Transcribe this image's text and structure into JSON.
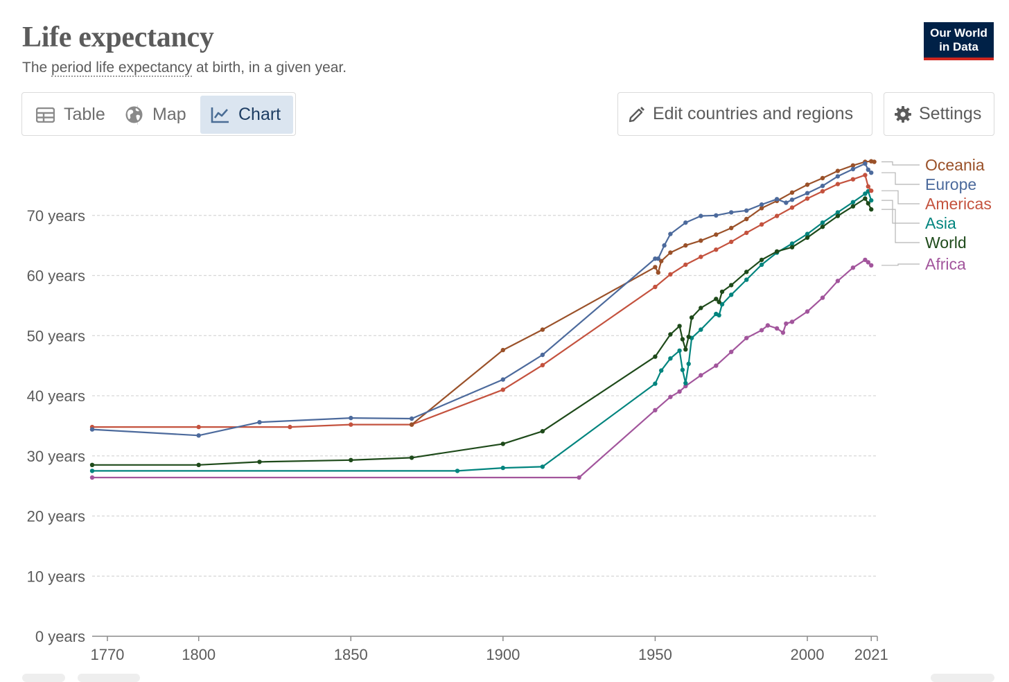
{
  "header": {
    "title": "Life expectancy",
    "subtitle_prefix": "The ",
    "subtitle_link": "period life expectancy",
    "subtitle_suffix": " at birth, in a given year.",
    "logo_line1": "Our World",
    "logo_line2": "in Data"
  },
  "tabs": [
    {
      "label": "Table",
      "icon": "table-icon"
    },
    {
      "label": "Map",
      "icon": "globe-icon"
    },
    {
      "label": "Chart",
      "icon": "line-chart-icon",
      "active": true
    }
  ],
  "actions": {
    "edit_label": "Edit countries and regions",
    "edit_icon": "pencil-icon",
    "settings_label": "Settings",
    "settings_icon": "gear-icon"
  },
  "chart_data": {
    "type": "line",
    "title": "Life expectancy",
    "subtitle": "The period life expectancy at birth, in a given year.",
    "xlim": [
      1765,
      2023
    ],
    "ylim": [
      0,
      80
    ],
    "xticks": [
      1770,
      1800,
      1850,
      1900,
      1950,
      2000,
      2021
    ],
    "yticks": [
      {
        "value": 0,
        "label": "0 years"
      },
      {
        "value": 10,
        "label": "10 years"
      },
      {
        "value": 20,
        "label": "20 years"
      },
      {
        "value": 30,
        "label": "30 years"
      },
      {
        "value": 40,
        "label": "40 years"
      },
      {
        "value": 50,
        "label": "50 years"
      },
      {
        "value": 60,
        "label": "60 years"
      },
      {
        "value": 70,
        "label": "70 years"
      }
    ],
    "grid": true,
    "legend": "right",
    "series": [
      {
        "name": "Oceania",
        "color": "#9a5129",
        "points": [
          [
            1870,
            35.2
          ],
          [
            1900,
            47.6
          ],
          [
            1913,
            51.0
          ],
          [
            1950,
            61.4
          ],
          [
            1951,
            60.5
          ],
          [
            1952,
            62.4
          ],
          [
            1955,
            63.8
          ],
          [
            1960,
            65.0
          ],
          [
            1965,
            65.8
          ],
          [
            1970,
            66.8
          ],
          [
            1975,
            67.9
          ],
          [
            1980,
            69.4
          ],
          [
            1985,
            71.2
          ],
          [
            1990,
            72.4
          ],
          [
            1995,
            73.8
          ],
          [
            2000,
            75.1
          ],
          [
            2005,
            76.2
          ],
          [
            2010,
            77.4
          ],
          [
            2015,
            78.3
          ],
          [
            2019,
            78.9
          ],
          [
            2021,
            79.0
          ],
          [
            2022,
            78.9
          ]
        ]
      },
      {
        "name": "Europe",
        "color": "#4c6a9c",
        "points": [
          [
            1765,
            34.4
          ],
          [
            1800,
            33.4
          ],
          [
            1820,
            35.6
          ],
          [
            1850,
            36.3
          ],
          [
            1870,
            36.2
          ],
          [
            1900,
            42.7
          ],
          [
            1913,
            46.8
          ],
          [
            1950,
            62.8
          ],
          [
            1951,
            62.8
          ],
          [
            1953,
            65.0
          ],
          [
            1955,
            66.9
          ],
          [
            1960,
            68.8
          ],
          [
            1965,
            69.9
          ],
          [
            1970,
            70.0
          ],
          [
            1975,
            70.5
          ],
          [
            1980,
            70.8
          ],
          [
            1985,
            71.8
          ],
          [
            1990,
            72.7
          ],
          [
            1993,
            72.1
          ],
          [
            1995,
            72.6
          ],
          [
            2000,
            73.7
          ],
          [
            2005,
            74.9
          ],
          [
            2010,
            76.5
          ],
          [
            2015,
            77.7
          ],
          [
            2019,
            78.6
          ],
          [
            2020,
            77.6
          ],
          [
            2021,
            77.1
          ]
        ]
      },
      {
        "name": "Americas",
        "color": "#c4523e",
        "points": [
          [
            1765,
            34.8
          ],
          [
            1800,
            34.8
          ],
          [
            1830,
            34.8
          ],
          [
            1850,
            35.2
          ],
          [
            1870,
            35.2
          ],
          [
            1900,
            41.0
          ],
          [
            1913,
            45.1
          ],
          [
            1950,
            58.1
          ],
          [
            1955,
            60.2
          ],
          [
            1960,
            61.8
          ],
          [
            1965,
            63.1
          ],
          [
            1970,
            64.3
          ],
          [
            1975,
            65.6
          ],
          [
            1980,
            67.1
          ],
          [
            1985,
            68.5
          ],
          [
            1990,
            69.9
          ],
          [
            1995,
            71.3
          ],
          [
            2000,
            72.8
          ],
          [
            2005,
            74.0
          ],
          [
            2010,
            75.2
          ],
          [
            2015,
            76.0
          ],
          [
            2019,
            76.7
          ],
          [
            2020,
            74.8
          ],
          [
            2021,
            74.1
          ]
        ]
      },
      {
        "name": "Asia",
        "color": "#00847e",
        "points": [
          [
            1765,
            27.5
          ],
          [
            1885,
            27.5
          ],
          [
            1900,
            28.0
          ],
          [
            1913,
            28.2
          ],
          [
            1950,
            42.0
          ],
          [
            1952,
            44.2
          ],
          [
            1955,
            46.2
          ],
          [
            1958,
            47.5
          ],
          [
            1959,
            44.3
          ],
          [
            1960,
            42.1
          ],
          [
            1961,
            45.3
          ],
          [
            1962,
            49.6
          ],
          [
            1965,
            51.0
          ],
          [
            1970,
            53.6
          ],
          [
            1971,
            53.4
          ],
          [
            1972,
            55.2
          ],
          [
            1975,
            56.8
          ],
          [
            1980,
            59.3
          ],
          [
            1985,
            61.8
          ],
          [
            1990,
            63.8
          ],
          [
            1995,
            65.3
          ],
          [
            2000,
            66.9
          ],
          [
            2005,
            68.8
          ],
          [
            2010,
            70.5
          ],
          [
            2015,
            72.2
          ],
          [
            2019,
            73.6
          ],
          [
            2020,
            74.0
          ],
          [
            2021,
            72.5
          ]
        ]
      },
      {
        "name": "World",
        "color": "#1e4a1a",
        "points": [
          [
            1765,
            28.5
          ],
          [
            1800,
            28.5
          ],
          [
            1820,
            29.0
          ],
          [
            1850,
            29.3
          ],
          [
            1870,
            29.7
          ],
          [
            1900,
            32.0
          ],
          [
            1913,
            34.1
          ],
          [
            1950,
            46.5
          ],
          [
            1955,
            50.2
          ],
          [
            1958,
            51.6
          ],
          [
            1959,
            49.4
          ],
          [
            1960,
            47.7
          ],
          [
            1961,
            49.8
          ],
          [
            1962,
            53.0
          ],
          [
            1965,
            54.6
          ],
          [
            1970,
            56.1
          ],
          [
            1971,
            55.6
          ],
          [
            1972,
            57.3
          ],
          [
            1975,
            58.4
          ],
          [
            1980,
            60.6
          ],
          [
            1985,
            62.6
          ],
          [
            1990,
            64.0
          ],
          [
            1995,
            64.7
          ],
          [
            2000,
            66.3
          ],
          [
            2005,
            68.1
          ],
          [
            2010,
            69.9
          ],
          [
            2015,
            71.5
          ],
          [
            2019,
            72.8
          ],
          [
            2020,
            72.0
          ],
          [
            2021,
            71.0
          ]
        ]
      },
      {
        "name": "Africa",
        "color": "#a2559c",
        "points": [
          [
            1765,
            26.4
          ],
          [
            1925,
            26.4
          ],
          [
            1950,
            37.6
          ],
          [
            1955,
            39.8
          ],
          [
            1958,
            40.7
          ],
          [
            1960,
            41.6
          ],
          [
            1965,
            43.4
          ],
          [
            1970,
            45.0
          ],
          [
            1975,
            47.3
          ],
          [
            1980,
            49.6
          ],
          [
            1985,
            50.9
          ],
          [
            1987,
            51.7
          ],
          [
            1990,
            51.2
          ],
          [
            1992,
            50.5
          ],
          [
            1993,
            52.0
          ],
          [
            1995,
            52.3
          ],
          [
            2000,
            54.0
          ],
          [
            2005,
            56.3
          ],
          [
            2010,
            59.1
          ],
          [
            2015,
            61.3
          ],
          [
            2019,
            62.6
          ],
          [
            2020,
            62.2
          ],
          [
            2021,
            61.7
          ]
        ]
      }
    ]
  }
}
